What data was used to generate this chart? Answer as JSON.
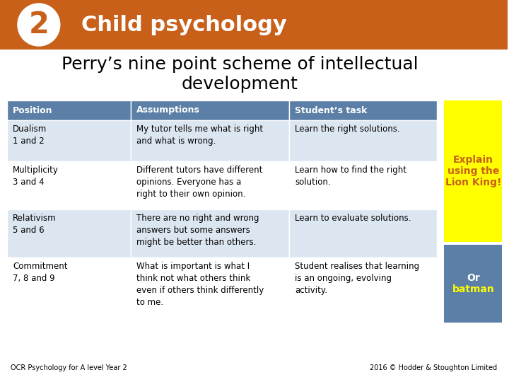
{
  "title_header": "Child psychology",
  "header_bg": "#c8601a",
  "number": "2",
  "main_title": "Perry’s nine point scheme of intellectual\ndevelopment",
  "footer_left": "OCR Psychology for A level Year 2",
  "footer_right": "2016 © Hodder & Stoughton Limited",
  "table_header_bg": "#5b7fa6",
  "table_header_color": "#ffffff",
  "table_row_odd": "#dce6f1",
  "table_row_even": "#ffffff",
  "col_headers": [
    "Position",
    "Assumptions",
    "Student’s task"
  ],
  "rows": [
    {
      "position": "Dualism\n1 and 2",
      "assumption": "My tutor tells me what is right\nand what is wrong.",
      "task": "Learn the right solutions."
    },
    {
      "position": "Multiplicity\n3 and 4",
      "assumption": "Different tutors have different\nopinions. Everyone has a\nright to their own opinion.",
      "task": "Learn how to find the right\nsolution."
    },
    {
      "position": "Relativism\n5 and 6",
      "assumption": "There are no right and wrong\nanswers but some answers\nmight be better than others.",
      "task": "Learn to evaluate solutions."
    },
    {
      "position": "Commitment\n7, 8 and 9",
      "assumption": "What is important is what I\nthink not what others think\neven if others think differently\nto me.",
      "task": "Student realises that learning\nis an ongoing, evolving\nactivity."
    }
  ],
  "side_box1_color": "#ffff00",
  "side_box1_text": "Explain\nusing the\nLion King!",
  "side_box1_text_color": "#c8601a",
  "side_box2_color": "#5b7fa6",
  "side_box2_text": "Or\nbatman",
  "side_box2_text_color": "#ffff00",
  "bg_color": "#ffffff"
}
